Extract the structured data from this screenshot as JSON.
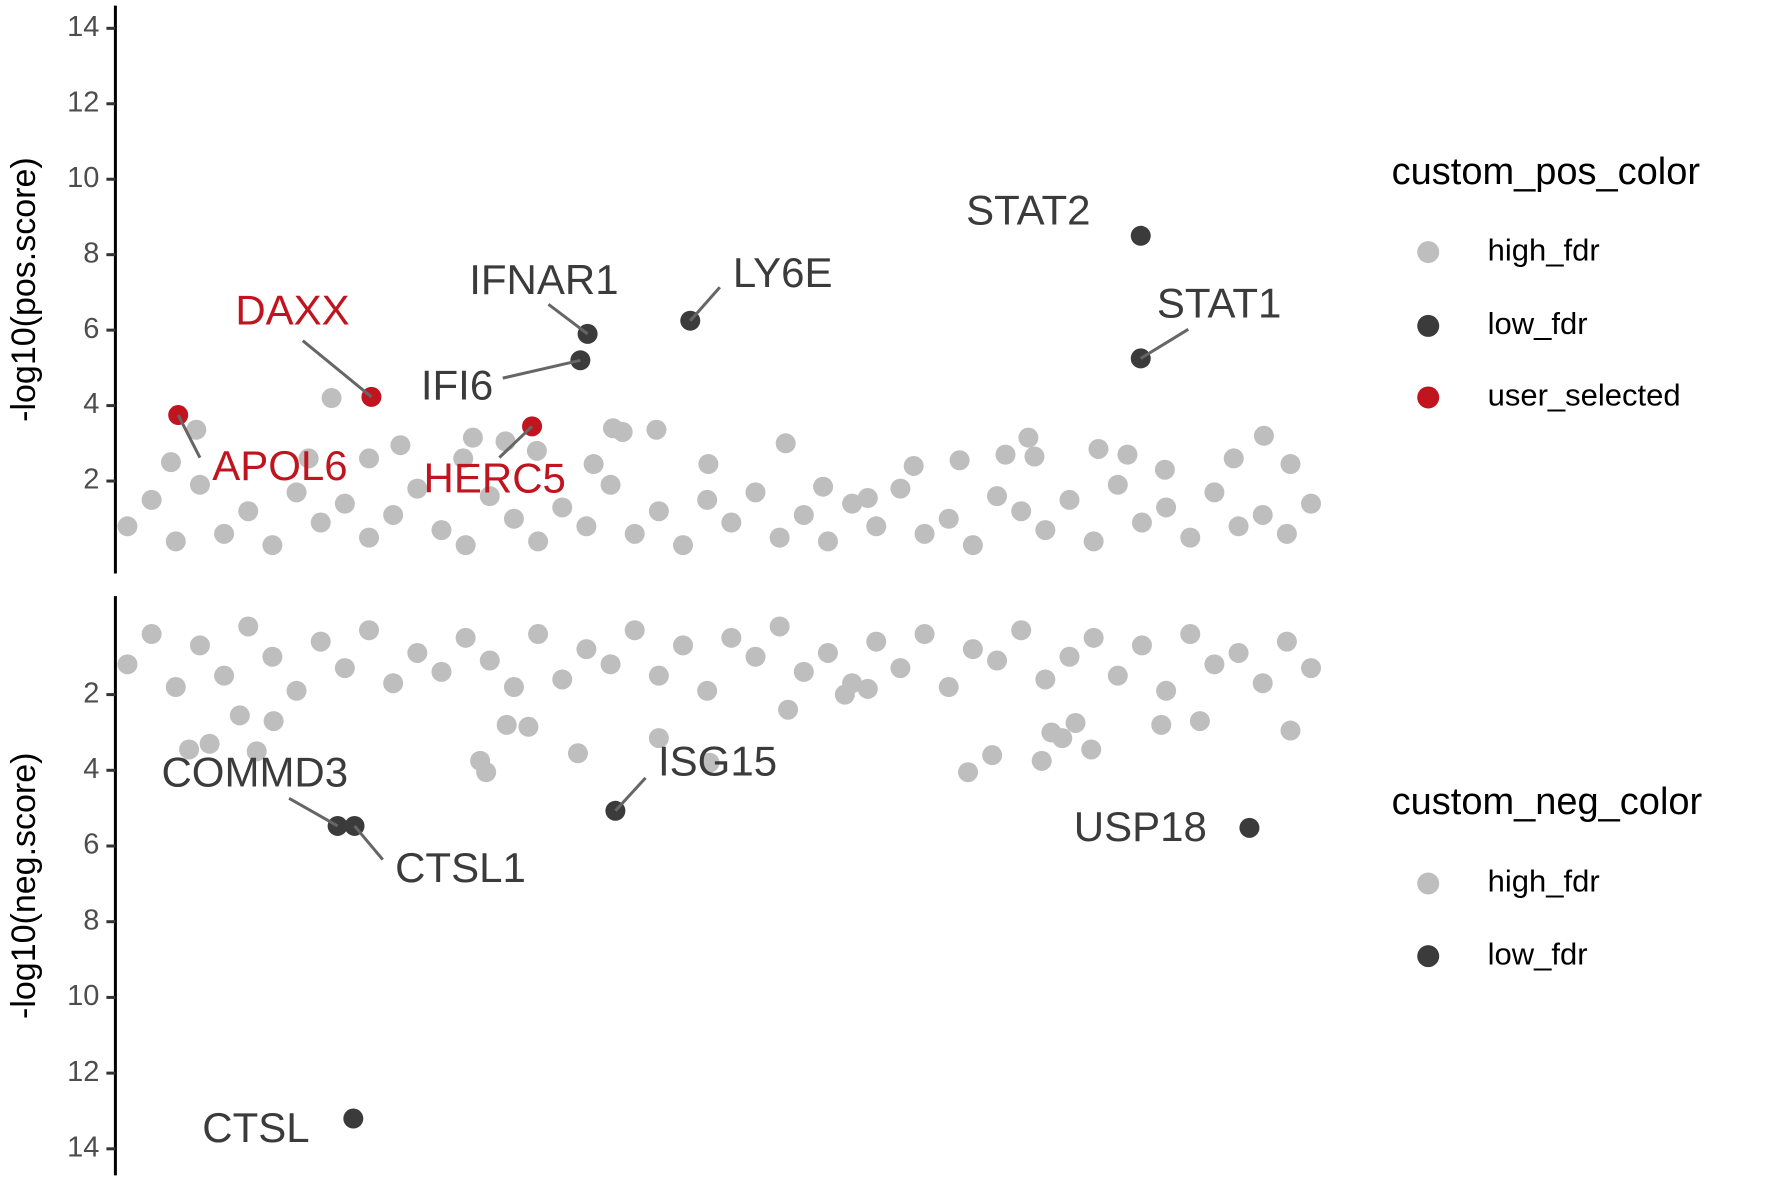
{
  "chart_data": [
    {
      "type": "scatter",
      "ylabel": "-log10(pos.score)",
      "legend_title": "custom_pos_color",
      "xlim": [
        0,
        100
      ],
      "ylim": [
        -0.45,
        14.6
      ],
      "yticks": [
        2,
        4,
        6,
        8,
        10,
        12,
        14
      ],
      "y_reversed": false,
      "series": [
        {
          "name": "high_fdr",
          "color": "#bebebe",
          "x": [
            17.9,
            6.7,
            4.6,
            41.2,
            42,
            44.8,
            29.6,
            23.6,
            55.5,
            75.6,
            81.4,
            95.1,
            83.8,
            97.3,
            76.1,
            73.7,
            39.6,
            49.1,
            66.1,
            69.9,
            32.3,
            28.8,
            34.9,
            21,
            16,
            92.6,
            86.9,
            58.6,
            62.3,
            1,
            3,
            5,
            7,
            9,
            11,
            13,
            15,
            17,
            19,
            21,
            23,
            25,
            27,
            29,
            31,
            33,
            35,
            37,
            39,
            41,
            43,
            45,
            47,
            49,
            51,
            53,
            55,
            57,
            59,
            61,
            63,
            65,
            67,
            69,
            71,
            73,
            75,
            77,
            79,
            81,
            83,
            85,
            87,
            89,
            91,
            93,
            95,
            97,
            99
          ],
          "values": [
            4.2,
            3.36,
            2.5,
            3.4,
            3.3,
            3.36,
            3.15,
            2.95,
            3.0,
            3.15,
            2.85,
            3.2,
            2.7,
            2.45,
            2.65,
            2.7,
            2.45,
            2.45,
            2.4,
            2.55,
            3.05,
            2.6,
            2.8,
            2.6,
            2.6,
            2.6,
            2.3,
            1.85,
            1.55,
            0.8,
            1.5,
            0.4,
            1.9,
            0.6,
            1.2,
            0.3,
            1.7,
            0.9,
            1.4,
            0.5,
            1.1,
            1.8,
            0.7,
            0.3,
            1.6,
            1.0,
            0.4,
            1.3,
            0.8,
            1.9,
            0.6,
            1.2,
            0.3,
            1.5,
            0.9,
            1.7,
            0.5,
            1.1,
            0.4,
            1.4,
            0.8,
            1.8,
            0.6,
            1.0,
            0.3,
            1.6,
            1.2,
            0.7,
            1.5,
            0.4,
            1.9,
            0.9,
            1.3,
            0.5,
            1.7,
            0.8,
            1.1,
            0.6,
            1.4
          ]
        },
        {
          "name": "low_fdr",
          "color": "#3b3b3b",
          "label_color": "#3b3b3b",
          "x": [
            84.9,
            84.9,
            47.6,
            39.1,
            38.5
          ],
          "values": [
            8.5,
            5.25,
            6.25,
            5.9,
            5.2
          ],
          "labels": [
            "STAT2",
            "STAT1",
            "LY6E",
            "IFNAR1",
            "IFI6"
          ]
        },
        {
          "name": "user_selected",
          "color": "#c0141f",
          "label_color": "#c0141f",
          "x": [
            21.2,
            5.2,
            34.5
          ],
          "values": [
            4.23,
            3.75,
            3.45
          ],
          "labels": [
            "DAXX",
            "APOL6",
            "HERC5"
          ]
        }
      ]
    },
    {
      "type": "scatter",
      "ylabel": "-log10(neg.score)",
      "legend_title": "custom_neg_color",
      "xlim": [
        0,
        100
      ],
      "ylim": [
        -0.6,
        14.7
      ],
      "yticks": [
        2,
        4,
        6,
        8,
        10,
        12,
        14
      ],
      "y_reversed": true,
      "series": [
        {
          "name": "high_fdr",
          "color": "#bebebe",
          "x": [
            30.2,
            30.7,
            38.3,
            45,
            49.2,
            70.6,
            72.6,
            76.7,
            78.4,
            80.8,
            79.5,
            77.5,
            6.1,
            7.8,
            11.7,
            10.3,
            13.1,
            32.4,
            34.2,
            97.3,
            86.6,
            89.8,
            55.7,
            60.4,
            62.3,
            1,
            3,
            5,
            7,
            9,
            11,
            13,
            15,
            17,
            19,
            21,
            23,
            25,
            27,
            29,
            31,
            33,
            35,
            37,
            39,
            41,
            43,
            45,
            47,
            49,
            51,
            53,
            55,
            57,
            59,
            61,
            63,
            65,
            67,
            69,
            71,
            73,
            75,
            77,
            79,
            81,
            83,
            85,
            87,
            89,
            91,
            93,
            95,
            97,
            99
          ],
          "values": [
            3.75,
            4.05,
            3.55,
            3.15,
            3.8,
            4.05,
            3.6,
            3.75,
            3.15,
            3.45,
            2.75,
            3.0,
            3.45,
            3.3,
            3.5,
            2.55,
            2.7,
            2.8,
            2.85,
            2.95,
            2.8,
            2.7,
            2.4,
            2.0,
            1.85,
            1.2,
            0.4,
            1.8,
            0.7,
            1.5,
            0.2,
            1.0,
            1.9,
            0.6,
            1.3,
            0.3,
            1.7,
            0.9,
            1.4,
            0.5,
            1.1,
            1.8,
            0.4,
            1.6,
            0.8,
            1.2,
            0.3,
            1.5,
            0.7,
            1.9,
            0.5,
            1.0,
            0.2,
            1.4,
            0.9,
            1.7,
            0.6,
            1.3,
            0.4,
            1.8,
            0.8,
            1.1,
            0.3,
            1.6,
            1.0,
            0.5,
            1.5,
            0.7,
            1.9,
            0.4,
            1.2,
            0.9,
            1.7,
            0.6,
            1.3
          ]
        },
        {
          "name": "low_fdr",
          "color": "#3b3b3b",
          "label_color": "#3b3b3b",
          "x": [
            19.7,
            18.4,
            19.8,
            41.4,
            93.9
          ],
          "values": [
            13.2,
            5.47,
            5.47,
            5.07,
            5.52
          ],
          "labels": [
            "CTSL",
            "COMMD3",
            "CTSL1",
            "ISG15",
            "USP18"
          ]
        }
      ]
    }
  ]
}
